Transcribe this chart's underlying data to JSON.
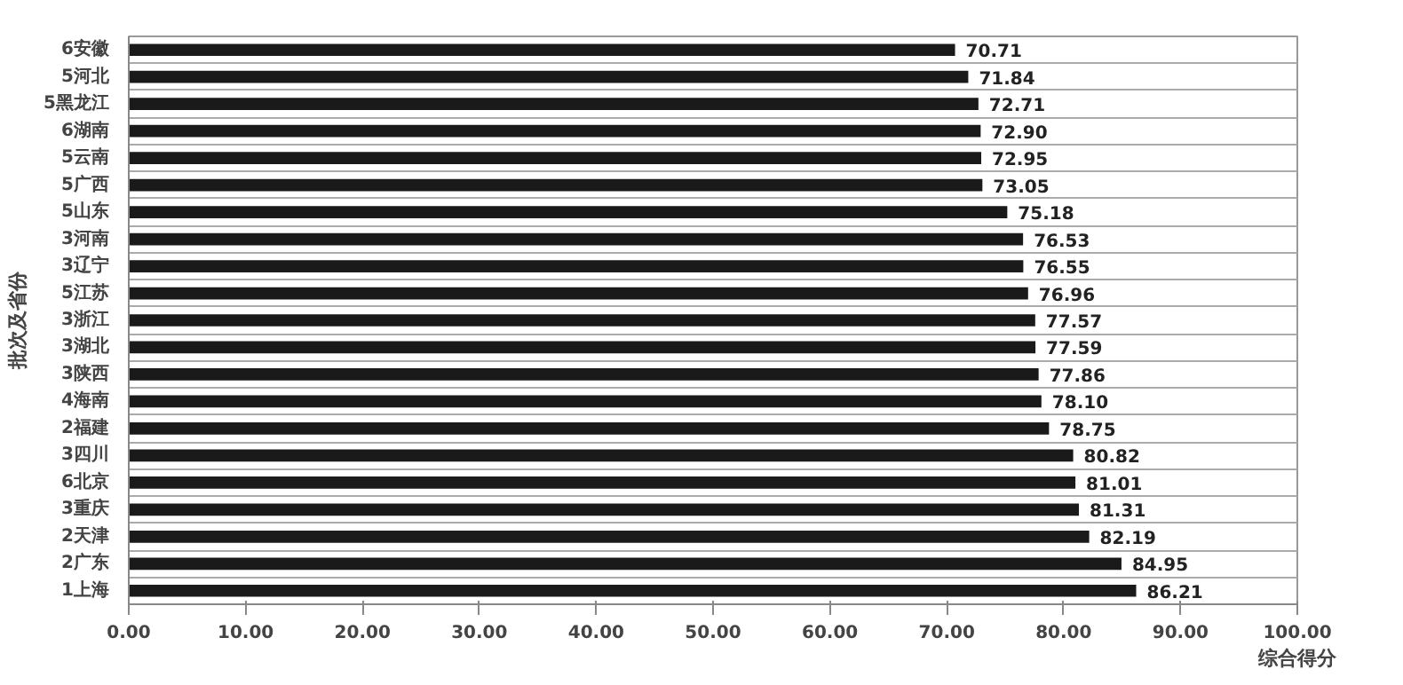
{
  "chart_data": {
    "type": "bar",
    "orientation": "horizontal",
    "xlabel": "综合得分",
    "ylabel": "批次及省份",
    "categories": [
      "6安徽",
      "5河北",
      "5黑龙江",
      "6湖南",
      "5云南",
      "5广西",
      "5山东",
      "3河南",
      "3辽宁",
      "5江苏",
      "3浙江",
      "3湖北",
      "3陕西",
      "4海南",
      "2福建",
      "3四川",
      "6北京",
      "3重庆",
      "2天津",
      "2广东",
      "1上海"
    ],
    "values": [
      70.71,
      71.84,
      72.71,
      72.9,
      72.95,
      73.05,
      75.18,
      76.53,
      76.55,
      76.96,
      77.57,
      77.59,
      77.86,
      78.1,
      78.75,
      80.82,
      81.01,
      81.31,
      82.19,
      84.95,
      86.21
    ],
    "color": "#1a1a1a",
    "xlim": [
      0,
      100
    ],
    "xticks": [
      {
        "value": 0,
        "label": "0.00"
      },
      {
        "value": 10,
        "label": "10.00"
      },
      {
        "value": 20,
        "label": "20.00"
      },
      {
        "value": 30,
        "label": "30.00"
      },
      {
        "value": 40,
        "label": "40.00"
      },
      {
        "value": 50,
        "label": "50.00"
      },
      {
        "value": 60,
        "label": "60.00"
      },
      {
        "value": 70,
        "label": "70.00"
      },
      {
        "value": 80,
        "label": "80.00"
      },
      {
        "value": 90,
        "label": "90.00"
      },
      {
        "value": 100,
        "label": "100.00"
      }
    ],
    "value_labels": [
      "70.71",
      "71.84",
      "72.71",
      "72.90",
      "72.95",
      "73.05",
      "75.18",
      "76.53",
      "76.55",
      "76.96",
      "77.57",
      "77.59",
      "77.86",
      "78.10",
      "78.75",
      "80.82",
      "81.01",
      "81.31",
      "82.19",
      "84.95",
      "86.21"
    ],
    "grid": "y"
  }
}
